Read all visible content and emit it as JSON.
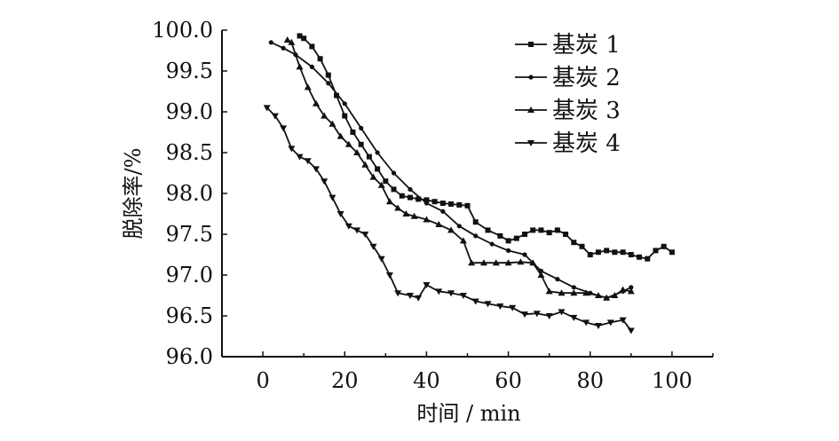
{
  "chart_data": {
    "type": "line",
    "xlabel": "时间 / min",
    "ylabel": "脱除率/%",
    "xlim": [
      -10,
      110
    ],
    "ylim": [
      96.0,
      100.0
    ],
    "xticks": [
      0,
      20,
      40,
      60,
      80,
      100
    ],
    "yticks": [
      96.0,
      96.5,
      97.0,
      97.5,
      98.0,
      98.5,
      99.0,
      99.5,
      100.0
    ],
    "xtick_labels": [
      "0",
      "20",
      "40",
      "60",
      "80",
      "100"
    ],
    "ytick_labels": [
      "96.0",
      "96.5",
      "97.0",
      "97.5",
      "98.0",
      "98.5",
      "99.0",
      "99.5",
      "100.0"
    ],
    "legend_position": "top-right",
    "grid": false,
    "series": [
      {
        "name": "基炭 1",
        "marker": "square",
        "x": [
          9,
          10,
          12,
          14,
          16,
          18,
          20,
          22,
          24,
          26,
          28,
          30,
          32,
          34,
          36,
          38,
          40,
          42,
          44,
          46,
          48,
          50,
          52,
          55,
          58,
          60,
          62,
          64,
          66,
          68,
          70,
          72,
          74,
          76,
          78,
          80,
          82,
          84,
          86,
          88,
          90,
          92,
          94,
          96,
          98,
          100
        ],
        "y": [
          99.93,
          99.9,
          99.8,
          99.65,
          99.45,
          99.2,
          98.95,
          98.75,
          98.6,
          98.45,
          98.3,
          98.15,
          98.05,
          97.97,
          97.95,
          97.93,
          97.92,
          97.9,
          97.88,
          97.87,
          97.86,
          97.85,
          97.65,
          97.55,
          97.48,
          97.42,
          97.45,
          97.5,
          97.55,
          97.55,
          97.52,
          97.55,
          97.5,
          97.4,
          97.35,
          97.25,
          97.28,
          97.3,
          97.28,
          97.28,
          97.25,
          97.22,
          97.2,
          97.3,
          97.35,
          97.28
        ]
      },
      {
        "name": "基炭 2",
        "marker": "circle",
        "x": [
          2,
          5,
          8,
          12,
          16,
          20,
          24,
          28,
          32,
          36,
          40,
          44,
          48,
          52,
          56,
          60,
          64,
          68,
          72,
          76,
          80,
          84,
          88,
          90
        ],
        "y": [
          99.85,
          99.78,
          99.7,
          99.55,
          99.35,
          99.1,
          98.8,
          98.5,
          98.25,
          98.05,
          97.88,
          97.78,
          97.6,
          97.48,
          97.38,
          97.3,
          97.25,
          97.05,
          96.95,
          96.85,
          96.78,
          96.72,
          96.8,
          96.85
        ]
      },
      {
        "name": "基炭 3",
        "marker": "triangle",
        "x": [
          6,
          7,
          9,
          11,
          13,
          15,
          17,
          19,
          21,
          23,
          25,
          27,
          29,
          31,
          33,
          35,
          37,
          40,
          43,
          46,
          49,
          51,
          54,
          57,
          60,
          63,
          66,
          68,
          70,
          73,
          76,
          79,
          82,
          84,
          86,
          88,
          90
        ],
        "y": [
          99.88,
          99.85,
          99.55,
          99.3,
          99.1,
          98.95,
          98.85,
          98.7,
          98.6,
          98.5,
          98.35,
          98.2,
          98.1,
          97.9,
          97.82,
          97.75,
          97.72,
          97.68,
          97.62,
          97.55,
          97.42,
          97.15,
          97.15,
          97.15,
          97.15,
          97.16,
          97.15,
          97.0,
          96.8,
          96.78,
          96.78,
          96.78,
          96.75,
          96.72,
          96.75,
          96.82,
          96.8
        ]
      },
      {
        "name": "基炭 4",
        "marker": "inverted-triangle",
        "x": [
          1,
          3,
          5,
          7,
          9,
          11,
          13,
          15,
          17,
          19,
          21,
          23,
          25,
          27,
          29,
          31,
          33,
          36,
          38,
          40,
          43,
          46,
          49,
          52,
          55,
          58,
          61,
          64,
          67,
          70,
          73,
          76,
          79,
          82,
          85,
          88,
          90
        ],
        "y": [
          99.05,
          98.95,
          98.8,
          98.55,
          98.45,
          98.4,
          98.3,
          98.15,
          97.95,
          97.75,
          97.6,
          97.55,
          97.5,
          97.35,
          97.2,
          97.0,
          96.78,
          96.75,
          96.72,
          96.88,
          96.8,
          96.78,
          96.75,
          96.68,
          96.65,
          96.62,
          96.6,
          96.52,
          96.53,
          96.5,
          96.55,
          96.48,
          96.42,
          96.38,
          96.42,
          96.45,
          96.32
        ]
      }
    ]
  }
}
